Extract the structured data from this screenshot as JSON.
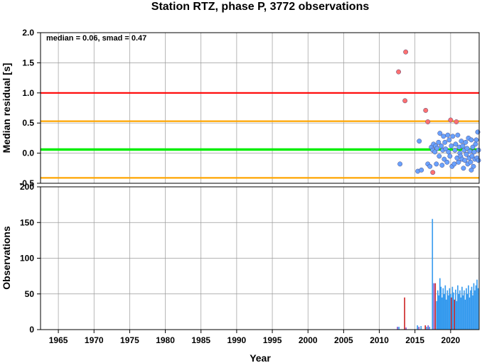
{
  "chart_data": {
    "title": "Station RTZ, phase P, 3772 observations",
    "x_label": "Year",
    "x_range": [
      1962.5,
      2024
    ],
    "x_ticks": [
      1965,
      1970,
      1975,
      1980,
      1985,
      1990,
      1995,
      2000,
      2005,
      2010,
      2015,
      2020
    ],
    "top_panel": {
      "type": "scatter",
      "ylabel": "Median residual [s]",
      "ylim": [
        -0.5,
        2.0
      ],
      "yticks": [
        "-0.5",
        "0.0",
        "0.5",
        "1.0",
        "1.5",
        "2.0"
      ],
      "grid": true,
      "annotation": "median = 0.06, smad = 0.47",
      "reference_lines": [
        {
          "value": 1.0,
          "color": "#ff0000"
        },
        {
          "value": 0.53,
          "color": "#ffa500"
        },
        {
          "value": -0.41,
          "color": "#ffa500"
        },
        {
          "value": 0.06,
          "color": "#00ee00"
        }
      ],
      "colors": {
        "outlier": "#ff7070",
        "normal": "#6aa2ff"
      },
      "series": [
        {
          "group": "outlier",
          "points": [
            [
              2012.7,
              1.35
            ],
            [
              2013.7,
              1.68
            ],
            [
              2013.6,
              0.87
            ],
            [
              2016.5,
              0.71
            ],
            [
              2016.8,
              0.52
            ],
            [
              2020.0,
              0.55
            ],
            [
              2020.8,
              0.52
            ],
            [
              2017.5,
              -0.32
            ]
          ]
        },
        {
          "group": "normal",
          "points": [
            [
              2012.9,
              -0.18
            ],
            [
              2015.4,
              -0.3
            ],
            [
              2015.6,
              0.2
            ],
            [
              2015.9,
              -0.28
            ],
            [
              2016.8,
              -0.18
            ],
            [
              2017.1,
              -0.22
            ],
            [
              2017.3,
              0.1
            ],
            [
              2017.5,
              0.05
            ],
            [
              2017.6,
              0.15
            ],
            [
              2017.8,
              0.02
            ],
            [
              2017.9,
              0.12
            ],
            [
              2018.0,
              -0.18
            ],
            [
              2018.1,
              0.08
            ],
            [
              2018.3,
              0.18
            ],
            [
              2018.4,
              -0.05
            ],
            [
              2018.5,
              0.33
            ],
            [
              2018.7,
              0.12
            ],
            [
              2018.8,
              -0.2
            ],
            [
              2018.9,
              0.05
            ],
            [
              2019.0,
              0.28
            ],
            [
              2019.1,
              -0.1
            ],
            [
              2019.2,
              0.18
            ],
            [
              2019.3,
              0.07
            ],
            [
              2019.5,
              -0.15
            ],
            [
              2019.6,
              0.3
            ],
            [
              2019.7,
              0.02
            ],
            [
              2019.8,
              0.22
            ],
            [
              2019.9,
              -0.05
            ],
            [
              2020.1,
              0.12
            ],
            [
              2020.2,
              -0.22
            ],
            [
              2020.3,
              0.28
            ],
            [
              2020.5,
              -0.18
            ],
            [
              2020.6,
              0.05
            ],
            [
              2020.7,
              0.15
            ],
            [
              2020.9,
              -0.08
            ],
            [
              2021.0,
              0.3
            ],
            [
              2021.1,
              -0.15
            ],
            [
              2021.2,
              0.1
            ],
            [
              2021.3,
              0.0
            ],
            [
              2021.4,
              -0.05
            ],
            [
              2021.5,
              0.2
            ],
            [
              2021.6,
              -0.1
            ],
            [
              2021.7,
              0.12
            ],
            [
              2021.8,
              -0.25
            ],
            [
              2021.9,
              0.05
            ],
            [
              2022.0,
              -0.12
            ],
            [
              2022.1,
              0.18
            ],
            [
              2022.2,
              -0.02
            ],
            [
              2022.3,
              0.08
            ],
            [
              2022.4,
              -0.18
            ],
            [
              2022.5,
              0.25
            ],
            [
              2022.6,
              -0.08
            ],
            [
              2022.7,
              0.03
            ],
            [
              2022.8,
              -0.15
            ],
            [
              2022.9,
              0.22
            ],
            [
              2023.0,
              -0.05
            ],
            [
              2023.1,
              0.1
            ],
            [
              2023.2,
              -0.22
            ],
            [
              2023.3,
              0.02
            ],
            [
              2023.4,
              -0.1
            ],
            [
              2023.5,
              0.15
            ],
            [
              2023.6,
              0.22
            ],
            [
              2023.7,
              -0.08
            ],
            [
              2023.8,
              0.35
            ],
            [
              2023.9,
              -0.12
            ],
            [
              2022.9,
              -0.28
            ],
            [
              2023.9,
              0.05
            ]
          ]
        }
      ]
    },
    "bottom_panel": {
      "type": "bar",
      "ylabel": "Observations",
      "ylim": [
        0,
        200
      ],
      "yticks": [
        "0",
        "50",
        "100",
        "150",
        "200"
      ],
      "grid": true,
      "colors": {
        "blue": "#3399ee",
        "red": "#cc2222",
        "purple": "#8855cc"
      },
      "bars": [
        {
          "year": 2012.55,
          "count": 4,
          "color": "purple"
        },
        {
          "year": 2012.75,
          "count": 4,
          "color": "blue"
        },
        {
          "year": 2013.55,
          "count": 45,
          "color": "red"
        },
        {
          "year": 2013.75,
          "count": 3,
          "color": "purple"
        },
        {
          "year": 2015.35,
          "count": 6,
          "color": "blue"
        },
        {
          "year": 2015.55,
          "count": 4,
          "color": "purple"
        },
        {
          "year": 2015.85,
          "count": 5,
          "color": "blue"
        },
        {
          "year": 2016.45,
          "count": 6,
          "color": "red"
        },
        {
          "year": 2016.65,
          "count": 4,
          "color": "blue"
        },
        {
          "year": 2016.85,
          "count": 6,
          "color": "purple"
        },
        {
          "year": 2017.05,
          "count": 4,
          "color": "blue"
        },
        {
          "year": 2017.45,
          "count": 155,
          "color": "blue"
        },
        {
          "year": 2017.65,
          "count": 65,
          "color": "purple"
        },
        {
          "year": 2017.85,
          "count": 65,
          "color": "red"
        },
        {
          "year": 2018.05,
          "count": 40,
          "color": "blue"
        },
        {
          "year": 2018.2,
          "count": 55,
          "color": "blue"
        },
        {
          "year": 2018.35,
          "count": 48,
          "color": "blue"
        },
        {
          "year": 2018.5,
          "count": 72,
          "color": "blue"
        },
        {
          "year": 2018.65,
          "count": 60,
          "color": "blue"
        },
        {
          "year": 2018.8,
          "count": 45,
          "color": "blue"
        },
        {
          "year": 2018.95,
          "count": 58,
          "color": "blue"
        },
        {
          "year": 2019.1,
          "count": 50,
          "color": "blue"
        },
        {
          "year": 2019.25,
          "count": 62,
          "color": "blue"
        },
        {
          "year": 2019.4,
          "count": 42,
          "color": "blue"
        },
        {
          "year": 2019.55,
          "count": 55,
          "color": "blue"
        },
        {
          "year": 2019.7,
          "count": 48,
          "color": "blue"
        },
        {
          "year": 2019.85,
          "count": 58,
          "color": "blue"
        },
        {
          "year": 2020.0,
          "count": 50,
          "color": "blue"
        },
        {
          "year": 2020.1,
          "count": 45,
          "color": "red"
        },
        {
          "year": 2020.25,
          "count": 60,
          "color": "blue"
        },
        {
          "year": 2020.4,
          "count": 52,
          "color": "blue"
        },
        {
          "year": 2020.55,
          "count": 42,
          "color": "red"
        },
        {
          "year": 2020.7,
          "count": 56,
          "color": "blue"
        },
        {
          "year": 2020.85,
          "count": 40,
          "color": "blue"
        },
        {
          "year": 2021.0,
          "count": 62,
          "color": "blue"
        },
        {
          "year": 2021.15,
          "count": 50,
          "color": "blue"
        },
        {
          "year": 2021.3,
          "count": 55,
          "color": "blue"
        },
        {
          "year": 2021.45,
          "count": 45,
          "color": "blue"
        },
        {
          "year": 2021.6,
          "count": 60,
          "color": "blue"
        },
        {
          "year": 2021.75,
          "count": 48,
          "color": "blue"
        },
        {
          "year": 2021.9,
          "count": 55,
          "color": "blue"
        },
        {
          "year": 2022.05,
          "count": 42,
          "color": "blue"
        },
        {
          "year": 2022.2,
          "count": 58,
          "color": "blue"
        },
        {
          "year": 2022.35,
          "count": 50,
          "color": "blue"
        },
        {
          "year": 2022.5,
          "count": 62,
          "color": "blue"
        },
        {
          "year": 2022.65,
          "count": 45,
          "color": "blue"
        },
        {
          "year": 2022.8,
          "count": 55,
          "color": "blue"
        },
        {
          "year": 2022.95,
          "count": 60,
          "color": "blue"
        },
        {
          "year": 2023.1,
          "count": 48,
          "color": "blue"
        },
        {
          "year": 2023.25,
          "count": 65,
          "color": "blue"
        },
        {
          "year": 2023.4,
          "count": 55,
          "color": "blue"
        },
        {
          "year": 2023.55,
          "count": 62,
          "color": "blue"
        },
        {
          "year": 2023.7,
          "count": 70,
          "color": "blue"
        },
        {
          "year": 2023.85,
          "count": 58,
          "color": "blue"
        }
      ]
    }
  }
}
